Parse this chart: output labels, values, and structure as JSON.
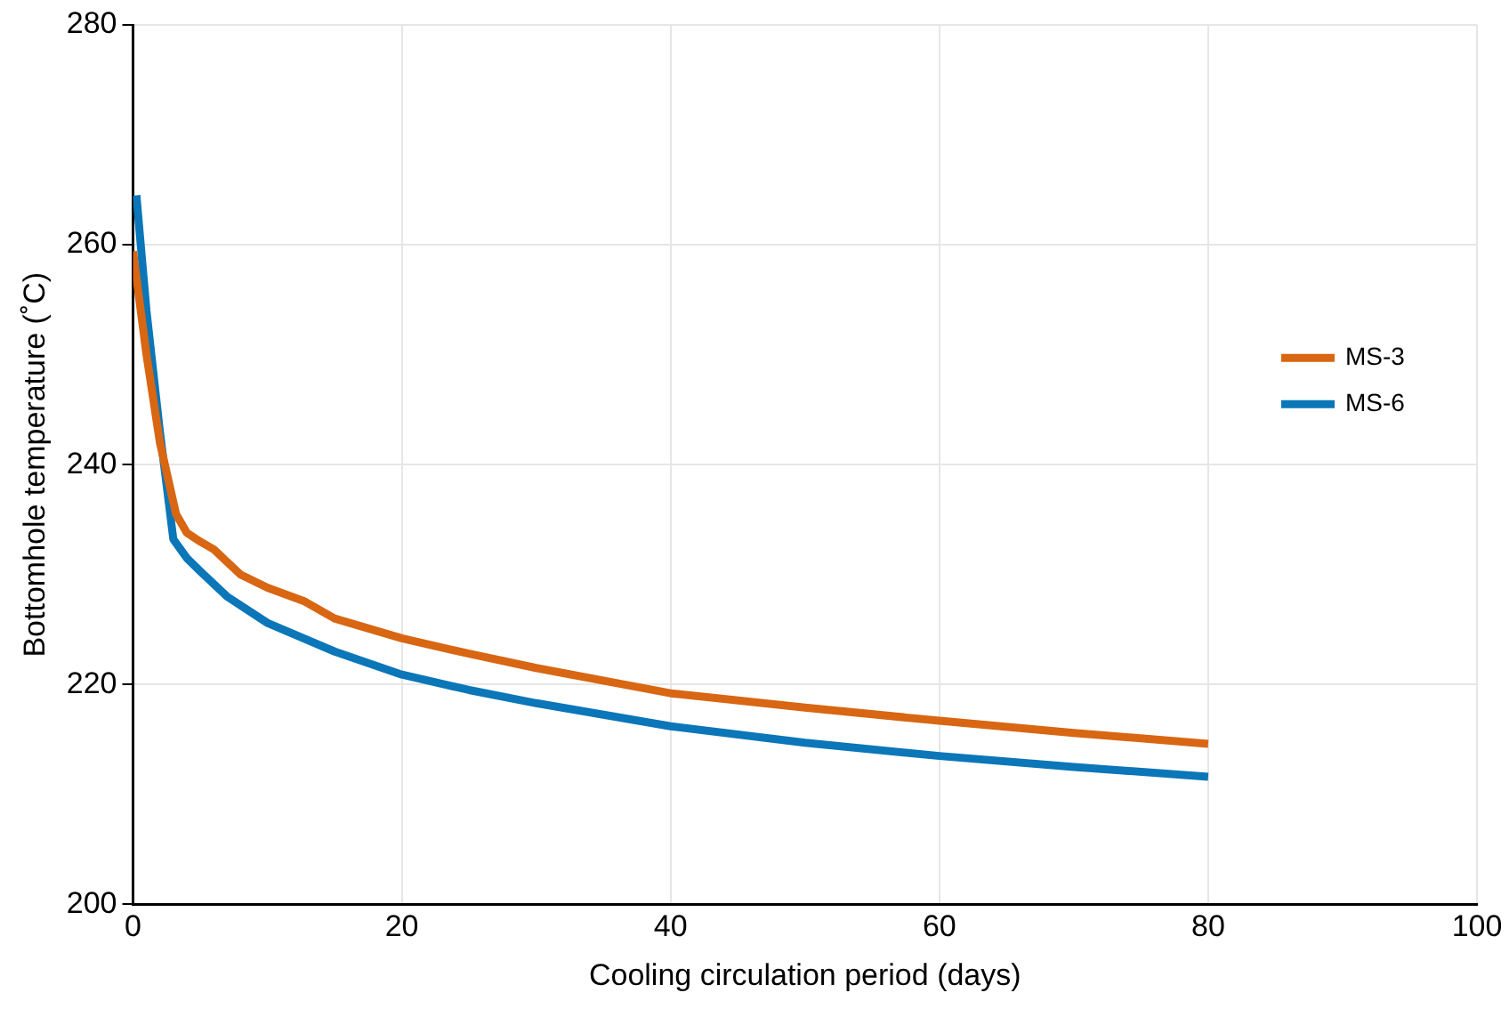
{
  "chart_data": {
    "type": "line",
    "xlabel": "Cooling circulation period (days)",
    "ylabel": "Bottomhole temperature (˚C)",
    "xlim": [
      0,
      100
    ],
    "xticks": [
      0,
      20,
      40,
      60,
      80,
      100
    ],
    "ylim": [
      200,
      280
    ],
    "yticks": [
      200,
      220,
      240,
      260,
      280
    ],
    "grid": true,
    "legend": "right",
    "marker": "none",
    "line_style": "solid",
    "series": [
      {
        "name": "MS-3",
        "color": "#d86613",
        "x": [
          0,
          1,
          2,
          3.2,
          4,
          5,
          6,
          8,
          10,
          12.7,
          15,
          20,
          25,
          30,
          40,
          50,
          60,
          70,
          80
        ],
        "values": [
          259.4,
          250,
          242,
          235.5,
          233.8,
          233,
          232.3,
          230,
          228.8,
          227.6,
          226,
          224.2,
          222.8,
          221.5,
          219.2,
          217.9,
          216.7,
          215.6,
          214.6
        ]
      },
      {
        "name": "MS-6",
        "color": "#0b76b8",
        "x": [
          0.25,
          1,
          2,
          3,
          4,
          5,
          7,
          10,
          15,
          20,
          25,
          30,
          40,
          50,
          60,
          70,
          80
        ],
        "values": [
          264.5,
          254,
          243,
          233.2,
          231.5,
          230.3,
          228,
          225.6,
          223,
          220.9,
          219.5,
          218.3,
          216.2,
          214.7,
          213.5,
          212.5,
          211.6
        ]
      }
    ]
  }
}
